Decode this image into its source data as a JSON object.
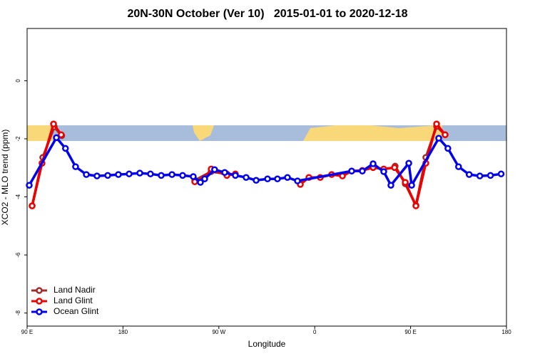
{
  "chart_data": {
    "type": "line",
    "title": "20N-30N October (Ver 10)   2015-01-01 to 2020-12-18",
    "x_label": "Longitude",
    "y_label": "XCO2 - MLO trend (ppm)",
    "xlim": [
      90,
      540
    ],
    "ylim": [
      -8.45,
      1.8
    ],
    "xticks": [
      {
        "value": 90,
        "label": "90 E"
      },
      180,
      {
        "value": 270,
        "label": "90 W"
      },
      {
        "value": 360,
        "label": "0"
      },
      {
        "value": 450,
        "label": "90 E"
      },
      {
        "value": 540,
        "label": "180"
      }
    ],
    "yticks": [
      0,
      -2,
      -4,
      -6,
      -8
    ],
    "legend": "bottom-left",
    "series": [
      {
        "name": "Land Nadir",
        "color": "#a52a2a",
        "x": [
          94.7,
          104.7,
          115.5,
          122.5,
          null,
          247.4,
          262.8,
          277.5,
          null,
          435.5,
          445,
          455,
          464.3,
          474.4,
          482.4
        ],
        "values": [
          -4.31,
          -2.64,
          -1.59,
          -1.89,
          null,
          -3.43,
          -3.13,
          -3.21,
          null,
          -2.94,
          -3.55,
          -4.29,
          -2.64,
          -1.57,
          -1.86
        ]
      },
      {
        "name": "Land Glint",
        "color": "#ee0000",
        "x": [
          94.7,
          104,
          114.8,
          122,
          null,
          247.4,
          256.7,
          262.8,
          277.5,
          285.5,
          null,
          346.5,
          354.5,
          365.2,
          375.9,
          386,
          394.7,
          404.7,
          414.8,
          424.8,
          434.9,
          445,
          455,
          464.3,
          474.4,
          482.4
        ],
        "values": [
          -4.31,
          -2.84,
          -1.49,
          -1.86,
          null,
          -3.48,
          -3.36,
          -3.04,
          -3.26,
          -3.21,
          null,
          -3.57,
          -3.33,
          -3.33,
          -3.23,
          -3.28,
          -3.11,
          -3.09,
          -2.99,
          -3.04,
          -2.99,
          -3.5,
          -4.31,
          -2.84,
          -1.49,
          -1.86
        ]
      },
      {
        "name": "Ocean Glint",
        "color": "#0000ee",
        "x": [
          92,
          117.5,
          126,
          135.5,
          145.6,
          155.6,
          165.7,
          175.7,
          185.8,
          195.8,
          205.8,
          215.9,
          226,
          236,
          246,
          252.7,
          256.7,
          266,
          275.5,
          285.5,
          295.6,
          305,
          315.7,
          325,
          334.4,
          343.8,
          394.7,
          404.7,
          414.8,
          424.8,
          431.5,
          448.3,
          451,
          476.4,
          485,
          495,
          505,
          515,
          525,
          535
        ],
        "values": [
          -3.6,
          -1.96,
          -2.33,
          -2.96,
          -3.23,
          -3.28,
          -3.26,
          -3.23,
          -3.21,
          -3.18,
          -3.21,
          -3.26,
          -3.23,
          -3.26,
          -3.3,
          -3.5,
          -3.38,
          -3.06,
          -3.16,
          -3.26,
          -3.33,
          -3.43,
          -3.38,
          -3.38,
          -3.33,
          -3.45,
          -3.11,
          -3.11,
          -2.86,
          -3.13,
          -3.6,
          -2.84,
          -3.6,
          -1.98,
          -2.33,
          -2.96,
          -3.23,
          -3.28,
          -3.26,
          -3.21
        ]
      }
    ]
  }
}
